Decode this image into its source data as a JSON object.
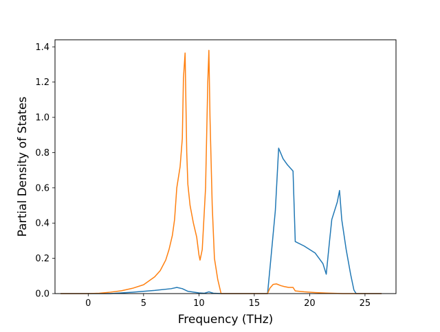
{
  "chart_data": {
    "type": "line",
    "title": "",
    "xlabel": "Frequency (THz)",
    "ylabel": "Partial Density of States",
    "xlim": [
      -3.0,
      27.8
    ],
    "ylim": [
      0.0,
      1.44
    ],
    "xticks": [
      0,
      5,
      10,
      15,
      20,
      25
    ],
    "yticks": [
      0.0,
      0.2,
      0.4,
      0.6,
      0.8,
      1.0,
      1.2,
      1.4
    ],
    "xtick_labels": [
      "0",
      "5",
      "10",
      "15",
      "20",
      "25"
    ],
    "ytick_labels": [
      "0.0",
      "0.2",
      "0.4",
      "0.6",
      "0.8",
      "1.0",
      "1.2",
      "1.4"
    ],
    "grid": false,
    "legend": "none",
    "series": [
      {
        "color": "#1f77b4",
        "x": [
          -2.5,
          0.0,
          2.0,
          4.0,
          6.0,
          7.5,
          8.0,
          8.5,
          9.0,
          10.0,
          10.5,
          10.9,
          11.3,
          12.0,
          14.0,
          16.2,
          16.5,
          16.9,
          17.2,
          17.6,
          18.0,
          18.5,
          18.7,
          19.5,
          20.5,
          21.2,
          21.5,
          21.8,
          22.0,
          22.5,
          22.7,
          22.9,
          23.3,
          23.7,
          24.0,
          24.2,
          25.0,
          26.5
        ],
        "y": [
          0.0,
          0.0,
          0.0,
          0.008,
          0.018,
          0.028,
          0.035,
          0.028,
          0.013,
          0.004,
          0.002,
          0.01,
          0.002,
          0.0,
          0.0,
          0.0,
          0.2,
          0.47,
          0.825,
          0.765,
          0.73,
          0.695,
          0.295,
          0.27,
          0.23,
          0.17,
          0.11,
          0.3,
          0.42,
          0.52,
          0.585,
          0.42,
          0.25,
          0.11,
          0.02,
          0.0,
          0.0,
          0.0
        ]
      },
      {
        "color": "#ff7f0e",
        "x": [
          -2.5,
          0.0,
          1.0,
          2.0,
          3.0,
          4.0,
          5.0,
          6.0,
          6.5,
          7.0,
          7.3,
          7.6,
          7.8,
          8.0,
          8.3,
          8.5,
          8.6,
          8.75,
          8.9,
          9.0,
          9.2,
          9.5,
          9.8,
          10.0,
          10.1,
          10.3,
          10.6,
          10.8,
          10.9,
          11.0,
          11.2,
          11.4,
          11.7,
          12.0,
          12.5,
          16.2,
          16.4,
          16.7,
          17.0,
          17.4,
          17.7,
          18.1,
          18.5,
          18.7,
          19.5,
          20.5,
          21.5,
          22.5,
          23.0,
          24.0,
          26.5
        ],
        "y": [
          0.0,
          0.0,
          0.002,
          0.008,
          0.016,
          0.03,
          0.05,
          0.095,
          0.13,
          0.19,
          0.25,
          0.33,
          0.42,
          0.6,
          0.72,
          0.88,
          1.22,
          1.365,
          0.8,
          0.62,
          0.5,
          0.4,
          0.32,
          0.22,
          0.19,
          0.25,
          0.6,
          1.2,
          1.38,
          1.0,
          0.5,
          0.2,
          0.08,
          0.0,
          0.0,
          0.0,
          0.03,
          0.052,
          0.055,
          0.045,
          0.04,
          0.035,
          0.035,
          0.015,
          0.01,
          0.006,
          0.003,
          0.001,
          0.0,
          0.0,
          0.0
        ]
      }
    ]
  }
}
